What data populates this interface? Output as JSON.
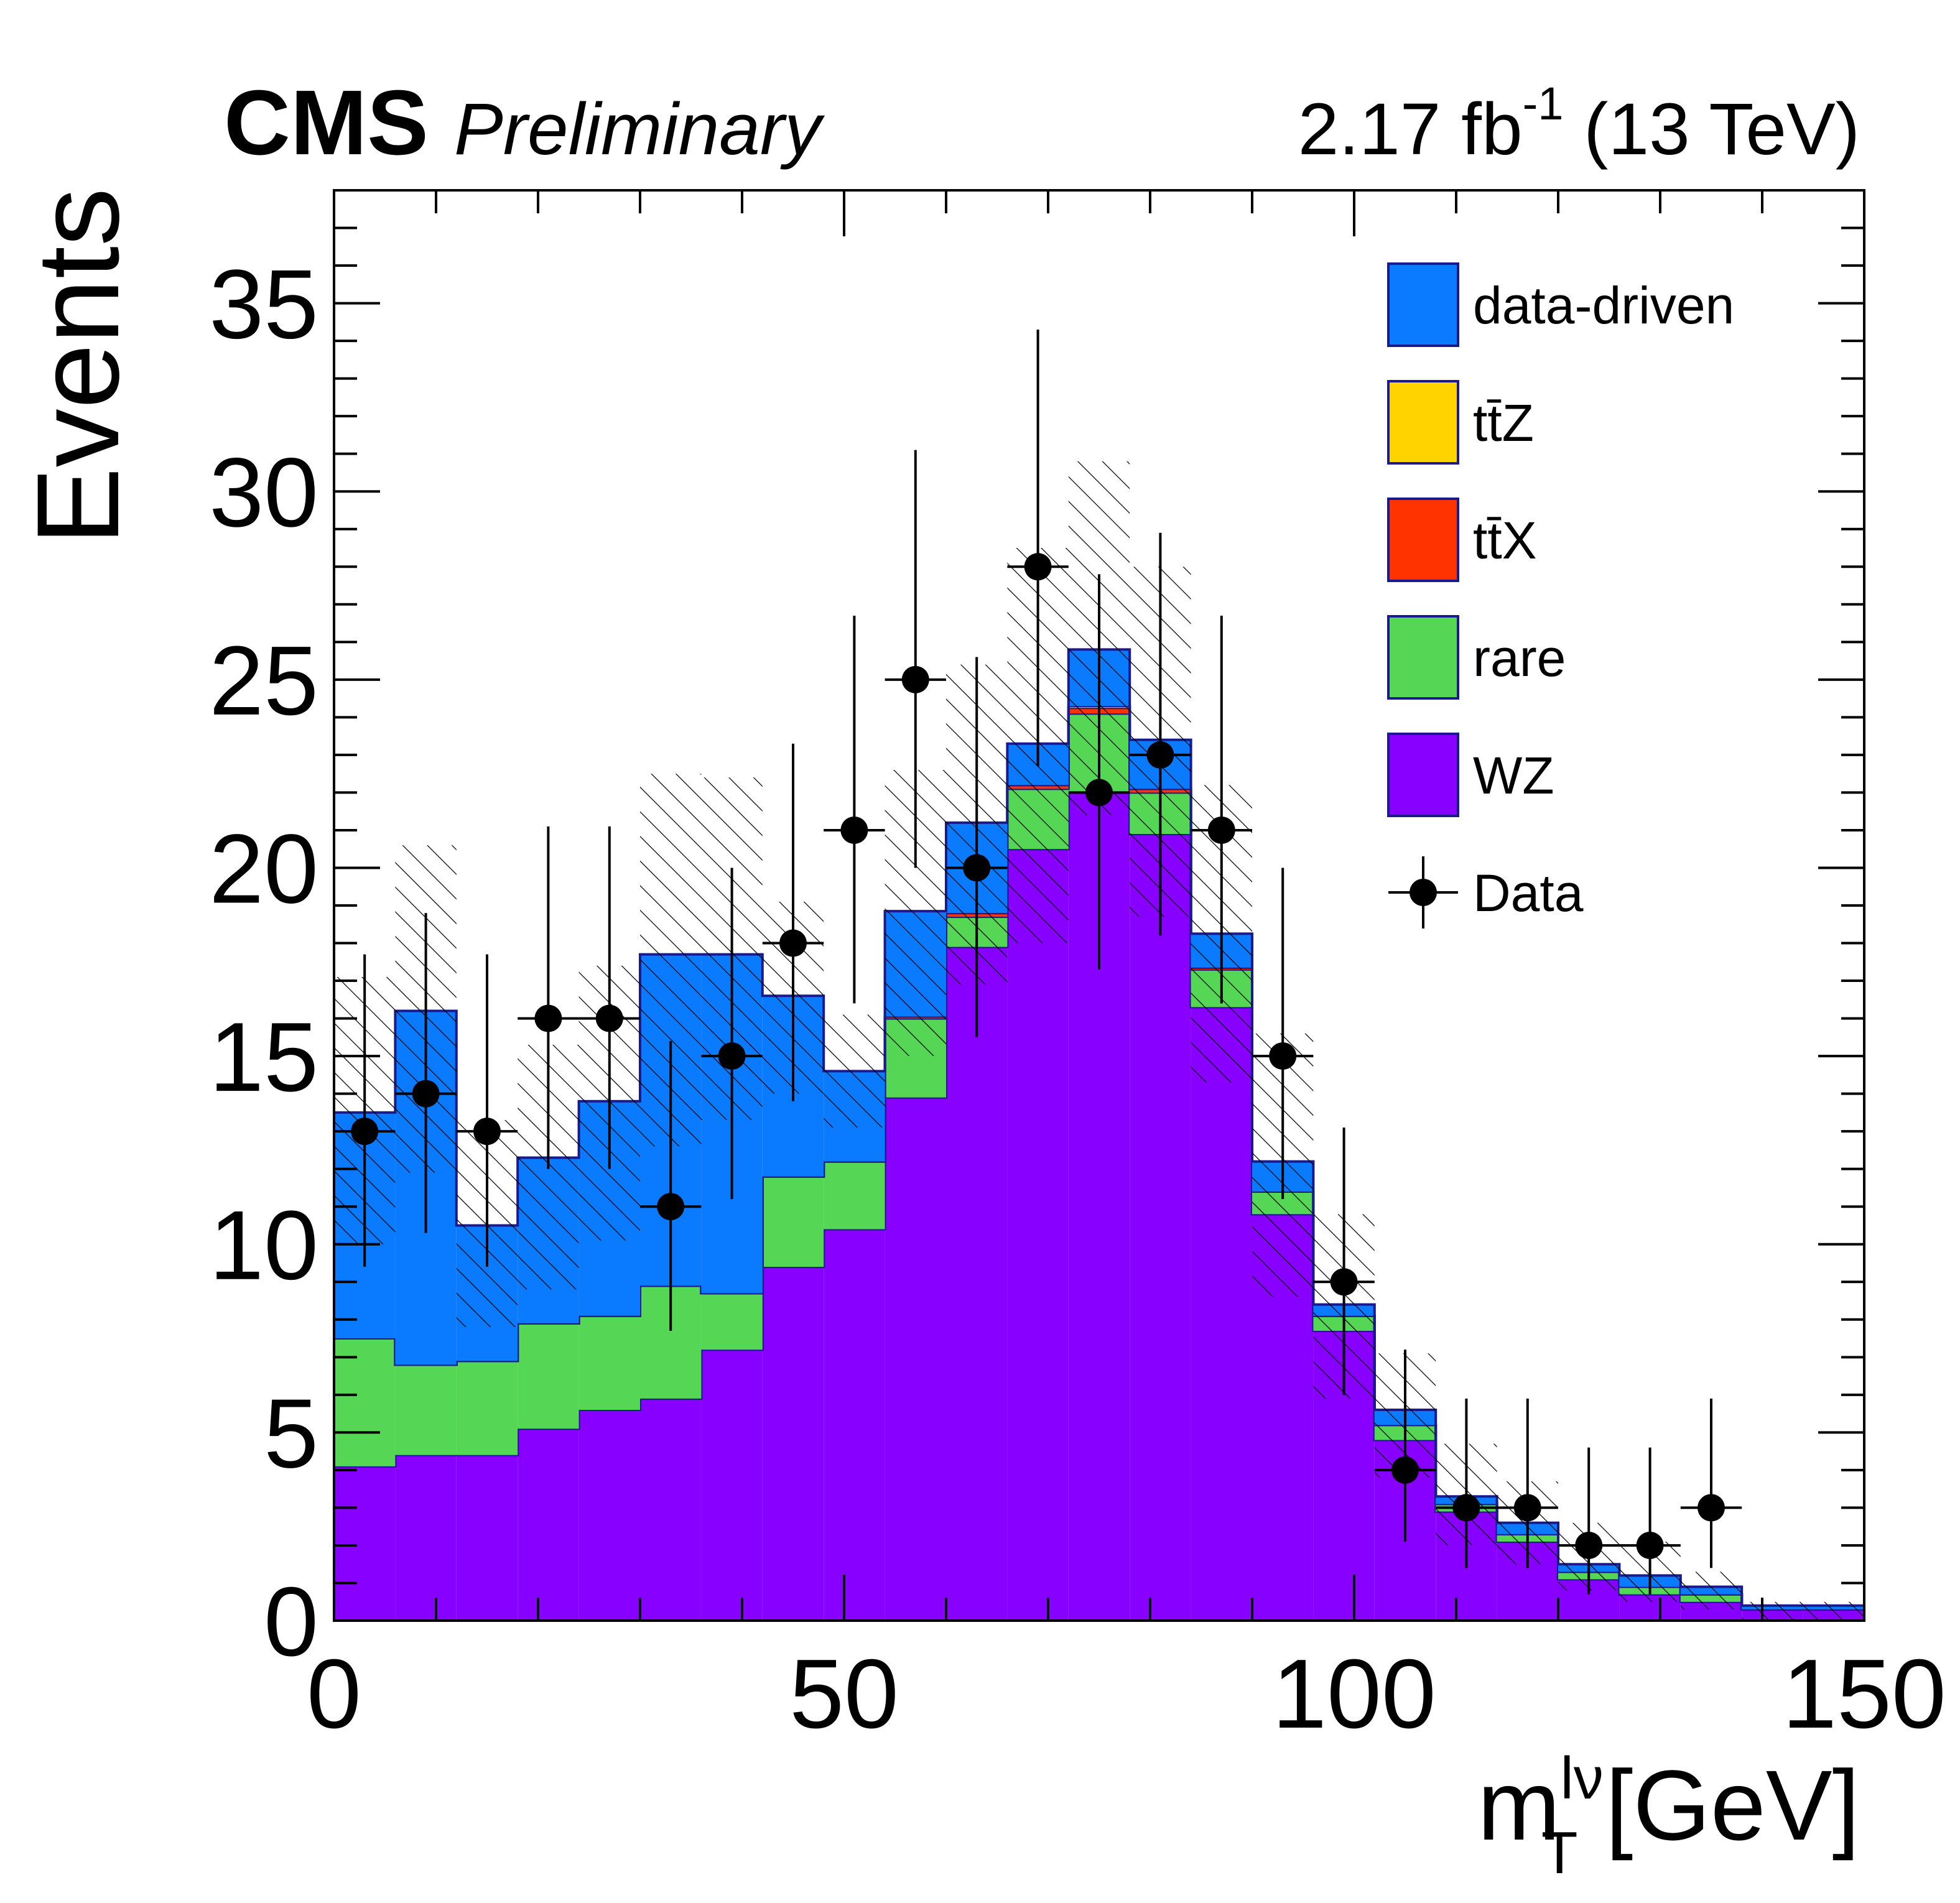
{
  "header": {
    "experiment": "CMS",
    "status": "Preliminary",
    "lumi_value": "2.17 fb",
    "lumi_exponent": "-1",
    "energy": " (13 TeV)"
  },
  "axes": {
    "ylabel": "Events",
    "xlabel_main": "m",
    "xlabel_sup": "lν",
    "xlabel_sub": "T",
    "xlabel_unit": " [GeV]"
  },
  "colors": {
    "data-driven": "#0a7bff",
    "ttZ": "#ffd300",
    "ttX": "#ff3300",
    "rare": "#55d655",
    "WZ": "#8800ff",
    "outline": "#1a1a8c"
  },
  "chart_data": {
    "type": "bar",
    "stacked": true,
    "xlim": [
      0,
      150
    ],
    "ylim": [
      0,
      38
    ],
    "x_ticks": [
      0,
      50,
      100,
      150
    ],
    "y_ticks": [
      0,
      5,
      10,
      15,
      20,
      25,
      30,
      35
    ],
    "bin_edges": [
      0,
      6,
      12,
      18,
      24,
      30,
      36,
      42,
      48,
      54,
      60,
      66,
      72,
      78,
      84,
      90,
      96,
      102,
      108,
      114,
      120,
      126,
      132,
      138,
      144,
      150
    ],
    "series": [
      {
        "name": "WZ",
        "key": "WZ",
        "values": [
          4.1,
          4.4,
          4.4,
          5.1,
          5.6,
          5.9,
          7.2,
          9.4,
          10.4,
          13.9,
          17.9,
          20.5,
          22.0,
          20.9,
          16.3,
          10.8,
          7.7,
          4.8,
          2.9,
          2.1,
          1.1,
          0.7,
          0.5,
          0.3,
          0.3
        ]
      },
      {
        "name": "rare",
        "key": "rare",
        "values": [
          3.4,
          2.4,
          2.5,
          2.8,
          2.5,
          3.0,
          1.5,
          2.4,
          1.8,
          2.1,
          0.8,
          1.6,
          2.1,
          1.1,
          1.0,
          0.6,
          0.4,
          0.4,
          0.2,
          0.2,
          0.2,
          0.2,
          0.2,
          0.0,
          0.0
        ]
      },
      {
        "name": "ttX",
        "key": "ttX",
        "values": [
          0.0,
          0.0,
          0.0,
          0.0,
          0.0,
          0.0,
          0.0,
          0.0,
          0.0,
          0.05,
          0.1,
          0.1,
          0.15,
          0.1,
          0.05,
          0.0,
          0.0,
          0.0,
          0.0,
          0.0,
          0.0,
          0.0,
          0.0,
          0.0,
          0.0
        ]
      },
      {
        "name": "ttZ",
        "key": "ttZ",
        "values": [
          0.0,
          0.0,
          0.0,
          0.0,
          0.0,
          0.0,
          0.0,
          0.0,
          0.0,
          0.0,
          0.0,
          0.0,
          0.05,
          0.0,
          0.0,
          0.0,
          0.0,
          0.0,
          0.0,
          0.0,
          0.0,
          0.0,
          0.0,
          0.0,
          0.0
        ]
      },
      {
        "name": "data-driven",
        "key": "data-driven",
        "values": [
          6.0,
          9.4,
          3.6,
          4.4,
          5.7,
          8.8,
          9.0,
          4.8,
          2.4,
          2.8,
          2.4,
          1.1,
          1.5,
          1.3,
          0.9,
          0.8,
          0.3,
          0.4,
          0.2,
          0.3,
          0.2,
          0.3,
          0.2,
          0.1,
          0.1
        ]
      }
    ],
    "uncertainty": {
      "total_up": [
        17.1,
        20.6,
        13.3,
        15.3,
        17.4,
        22.5,
        22.4,
        19.1,
        16.1,
        22.6,
        25.4,
        28.5,
        30.8,
        28.0,
        22.2,
        15.6,
        10.8,
        7.1,
        4.7,
        3.7,
        2.6,
        2.1,
        1.3,
        0.5,
        0.5
      ],
      "total_down": [
        10.0,
        11.9,
        7.8,
        8.8,
        10.1,
        12.6,
        13.3,
        14.0,
        13.1,
        15.0,
        16.9,
        18.0,
        21.4,
        18.7,
        14.3,
        8.6,
        5.9,
        3.8,
        2.0,
        1.5,
        0.8,
        0.5,
        0.3,
        0.0,
        0.0
      ]
    },
    "data": {
      "name": "Data",
      "x": [
        3,
        9,
        15,
        21,
        27,
        33,
        39,
        45,
        51,
        57,
        63,
        69,
        75,
        81,
        87,
        93,
        99,
        105,
        111,
        117,
        123,
        129,
        135
      ],
      "y": [
        13,
        14,
        13,
        16,
        16,
        11,
        15,
        18,
        21,
        25,
        20,
        28,
        22,
        23,
        21,
        15,
        9,
        4,
        3,
        3,
        2,
        2,
        3
      ],
      "err_low": [
        3.6,
        3.7,
        3.6,
        4.0,
        4.0,
        3.3,
        3.8,
        4.2,
        4.6,
        5.0,
        4.5,
        5.3,
        4.7,
        4.8,
        4.6,
        3.8,
        3.0,
        1.9,
        1.6,
        1.6,
        1.3,
        1.3,
        1.6
      ],
      "err_high": [
        4.7,
        4.8,
        4.7,
        5.1,
        5.1,
        4.4,
        5.0,
        5.3,
        5.7,
        6.1,
        5.6,
        6.3,
        5.8,
        5.9,
        5.7,
        5.0,
        4.1,
        3.2,
        2.9,
        2.9,
        2.6,
        2.6,
        2.9
      ]
    },
    "legend": {
      "position": "top-right",
      "entries": [
        {
          "label": "data-driven",
          "key": "data-driven",
          "kind": "box"
        },
        {
          "label": "tt̄Z",
          "key": "ttZ",
          "kind": "box"
        },
        {
          "label": "tt̄X",
          "key": "ttX",
          "kind": "box"
        },
        {
          "label": "rare",
          "key": "rare",
          "kind": "box"
        },
        {
          "label": "WZ",
          "key": "WZ",
          "kind": "box"
        },
        {
          "label": "Data",
          "key": "data",
          "kind": "marker"
        }
      ]
    }
  }
}
